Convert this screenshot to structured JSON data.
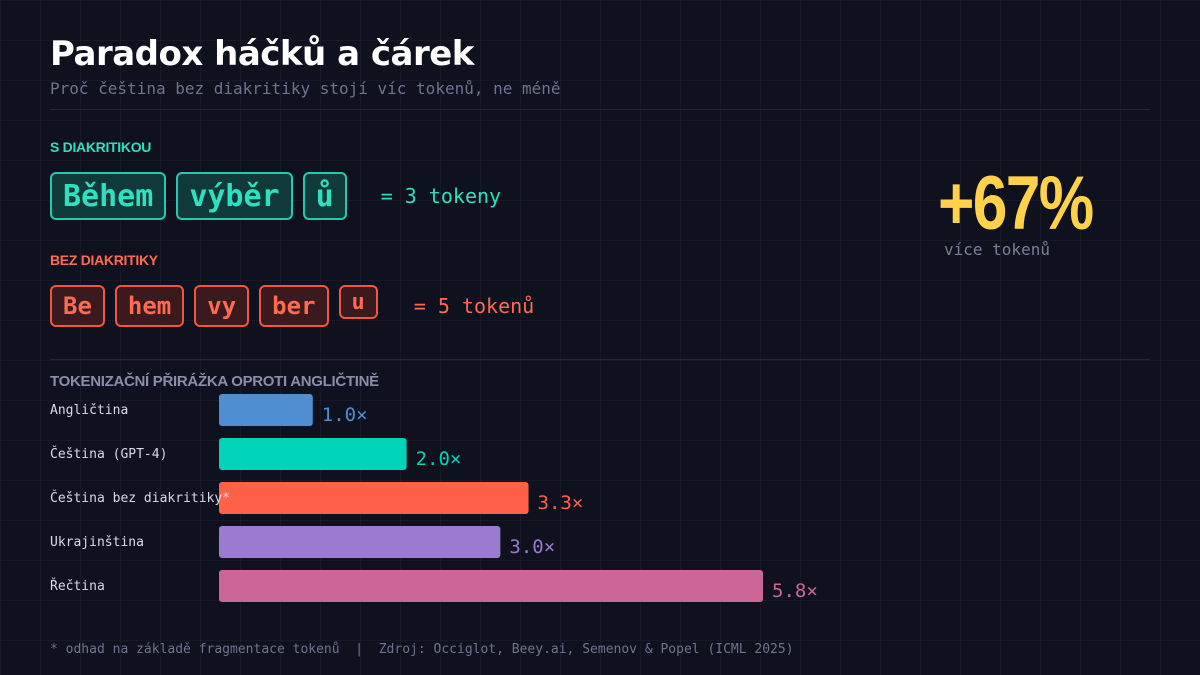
{
  "title": "Paradox háčků a čárek",
  "subtitle": "Proč čeština bez diakritiky stojí víc tokenů, ne méně",
  "with_diacritics": {
    "label": "S DIAKRITIKOU",
    "tokens": [
      "Během",
      "výběr",
      "ů"
    ],
    "count_label": "= 3 tokeny",
    "color": "#2ee0c0"
  },
  "without_diacritics": {
    "label": "BEZ DIAKRITIKY",
    "tokens": [
      "Be",
      "hem",
      "vy",
      "ber",
      "u"
    ],
    "count_label": "= 5 tokenů",
    "color": "#ff6a50"
  },
  "highlight": {
    "value": "+67%",
    "label": "více tokenů",
    "color": "#ffd24a"
  },
  "chart_data": {
    "type": "bar",
    "orientation": "horizontal",
    "title": "TOKENIZAČNÍ PŘIRÁŽKA OPROTI ANGLIČTINĚ",
    "categories": [
      "Angličtina",
      "Čeština (GPT-4)",
      "Čeština bez diakritiky*",
      "Ukrajinština",
      "Řečtina"
    ],
    "values": [
      1.0,
      2.0,
      3.3,
      3.0,
      5.8
    ],
    "value_labels": [
      "1.0×",
      "2.0×",
      "3.3×",
      "3.0×",
      "5.8×"
    ],
    "colors": [
      "#4f8fd1",
      "#00d4b8",
      "#ff6048",
      "#9b7bd0",
      "#cc6699"
    ],
    "xlim": [
      0,
      5.8
    ],
    "grid": false
  },
  "footer": "* odhad na základě fragmentace tokenů  |  Zdroj: Occiglot, Beey.ai, Semenov & Popel (ICML 2025)"
}
